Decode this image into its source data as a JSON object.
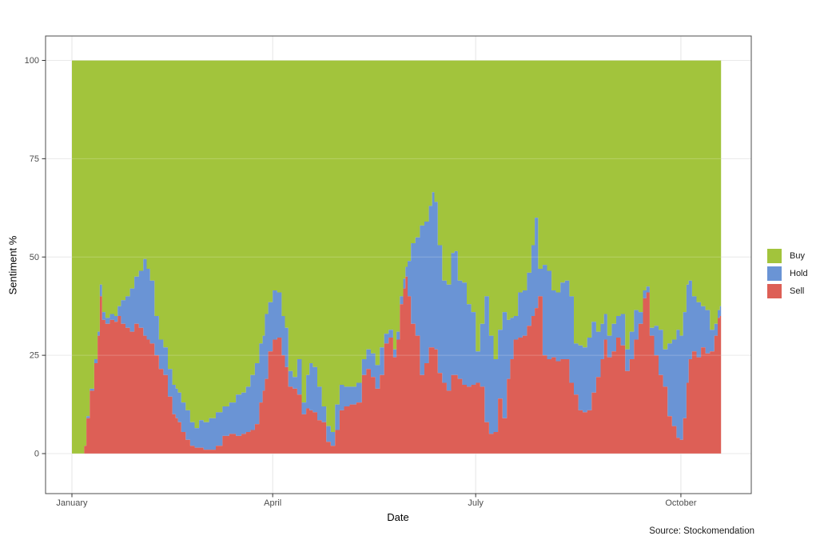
{
  "figure": {
    "y_axis": {
      "title": "Sentiment %",
      "tick_labels": [
        "0",
        "25",
        "50",
        "75",
        "100"
      ]
    },
    "x_axis": {
      "title": "Date",
      "tick_labels": [
        "January",
        "April",
        "July",
        "October"
      ]
    },
    "legend": {
      "items": [
        {
          "label": "Buy",
          "color": "#a2c43c"
        },
        {
          "label": "Hold",
          "color": "#6a94d5"
        },
        {
          "label": "Sell",
          "color": "#dd5f56"
        }
      ]
    },
    "source": "Source: Stockomendation"
  },
  "chart_data": {
    "type": "area",
    "stacked": true,
    "title": "",
    "xlabel": "Date",
    "ylabel": "Sentiment %",
    "ylim": [
      0,
      100
    ],
    "y_ticks": [
      0,
      25,
      50,
      75,
      100
    ],
    "x_unit": "days_since_january_1",
    "x_tick_positions": [
      0,
      90,
      181,
      273
    ],
    "x_tick_labels": [
      "January",
      "April",
      "July",
      "October"
    ],
    "legend_position": "right",
    "grid": "major",
    "colors": {
      "grid": "#e5e5e5",
      "panel_border": "#4d4d4d",
      "tick_text": "#4d4d4d",
      "panel_bg": "#ffffff"
    },
    "x": [
      0,
      5,
      6,
      7,
      9,
      11,
      12,
      13,
      14,
      16,
      18,
      20,
      21,
      23,
      25,
      27,
      29,
      31,
      33,
      34,
      36,
      38,
      40,
      42,
      44,
      46,
      47,
      48,
      50,
      52,
      54,
      56,
      58,
      60,
      63,
      66,
      69,
      72,
      75,
      77,
      79,
      81,
      83,
      85,
      86,
      87,
      89,
      91,
      93,
      95,
      96,
      98,
      100,
      102,
      104,
      106,
      107,
      109,
      111,
      113,
      115,
      117,
      119,
      121,
      123,
      126,
      129,
      131,
      133,
      135,
      137,
      139,
      141,
      143,
      145,
      146,
      148,
      149,
      150,
      151,
      153,
      155,
      157,
      159,
      161,
      162,
      163,
      165,
      167,
      169,
      171,
      172,
      174,
      176,
      178,
      180,
      182,
      184,
      186,
      188,
      190,
      192,
      194,
      196,
      197,
      199,
      201,
      203,
      205,
      207,
      208,
      210,
      212,
      214,
      216,
      218,
      220,
      222,
      224,
      226,
      228,
      230,
      232,
      234,
      236,
      238,
      239,
      241,
      243,
      245,
      247,
      249,
      251,
      253,
      255,
      257,
      258,
      260,
      262,
      264,
      266,
      268,
      270,
      272,
      273,
      275,
      276,
      277,
      279,
      281,
      283,
      285,
      287,
      289,
      290,
      291
    ],
    "series": [
      {
        "name": "Sell",
        "color": "#dd5f56",
        "values": [
          0,
          0,
          2,
          9,
          16,
          23,
          30,
          40,
          34,
          33,
          34,
          33.5,
          35,
          33,
          32,
          31,
          33,
          32,
          30,
          29,
          28,
          25,
          21.5,
          20,
          14.5,
          10,
          9,
          8,
          5.5,
          3.5,
          2,
          1.5,
          1.5,
          1,
          1,
          2,
          4.5,
          5,
          4.5,
          5,
          5.5,
          6,
          7.5,
          13,
          16,
          19,
          26,
          29,
          29.5,
          25,
          22,
          17,
          16.5,
          15,
          10,
          11.5,
          11,
          10.5,
          8.5,
          8,
          3,
          2,
          6,
          11,
          12,
          12.5,
          13,
          20,
          21.5,
          19.5,
          16.5,
          20,
          28,
          29.5,
          24.5,
          29,
          38,
          42,
          45,
          40,
          33,
          30,
          20,
          23,
          27,
          27,
          26.5,
          20.5,
          18,
          16,
          20,
          20,
          19,
          17.5,
          17,
          17.5,
          18,
          17,
          8,
          5,
          5.5,
          14,
          9,
          19,
          24,
          29,
          29.5,
          30,
          32.5,
          35,
          37,
          40,
          25,
          24,
          24.5,
          23.5,
          24,
          24,
          18,
          15,
          11,
          10.5,
          11,
          15.5,
          19.5,
          24,
          29,
          24.5,
          26,
          29.5,
          27.5,
          21,
          24,
          29,
          33,
          39.5,
          41,
          30,
          25,
          20,
          17,
          9.5,
          7,
          4,
          3.5,
          9,
          18,
          24,
          26,
          24.5,
          27,
          25.5,
          26,
          30,
          34.5,
          35
        ]
      },
      {
        "name": "Hold",
        "color": "#6a94d5",
        "values": [
          0,
          0,
          0,
          0.5,
          0.5,
          1,
          1,
          3,
          2,
          1.5,
          1.5,
          1.5,
          2.5,
          6,
          8,
          11,
          12,
          14.5,
          19.5,
          18,
          16,
          10,
          7.5,
          7,
          7,
          7.5,
          7.5,
          7.5,
          7.5,
          7.5,
          6,
          5,
          7,
          7,
          8,
          8.5,
          7.5,
          8,
          10.5,
          10.5,
          11.5,
          14,
          15.5,
          15,
          14,
          16.5,
          12.5,
          12.5,
          11.5,
          10,
          10,
          4,
          3,
          9,
          3,
          8.5,
          12,
          11.5,
          8.5,
          4,
          4,
          3.5,
          6.5,
          6.5,
          5,
          4.5,
          5,
          4,
          5,
          6,
          6,
          7,
          2.5,
          2,
          2,
          2,
          2,
          2.5,
          2.5,
          9,
          20.5,
          25,
          38,
          36,
          36,
          39.5,
          37.5,
          32.5,
          26,
          27,
          31,
          31.5,
          25,
          26,
          21,
          18.5,
          8,
          16,
          32,
          25,
          18.5,
          17.5,
          27,
          15,
          10.5,
          6,
          11.5,
          11.5,
          13.5,
          18,
          23,
          7,
          23,
          22.5,
          17,
          17.5,
          19.5,
          20,
          22,
          13,
          16.5,
          16.5,
          18.5,
          18,
          11.5,
          9,
          6.5,
          5.5,
          7,
          5.5,
          8,
          5.5,
          7,
          7.5,
          3,
          2,
          1.5,
          2,
          7.5,
          11.5,
          9.5,
          18.5,
          22,
          27.5,
          26.5,
          27,
          25,
          20,
          14,
          14,
          10.5,
          11,
          5.5,
          3,
          2,
          2.5
        ]
      },
      {
        "name": "Buy",
        "color": "#a2c43c",
        "values": [
          100,
          100,
          98,
          90.5,
          83.5,
          76,
          69,
          57,
          64,
          65.5,
          64.5,
          65,
          62.5,
          61,
          60,
          58,
          55,
          53.5,
          50.5,
          53,
          56,
          65,
          71,
          73,
          78.5,
          82.5,
          83.5,
          84.5,
          87,
          89,
          92,
          93.5,
          91.5,
          92,
          91,
          89.5,
          88,
          87,
          85,
          84.5,
          83,
          80,
          77,
          72,
          70,
          64.5,
          61.5,
          58.5,
          59,
          65,
          68,
          79,
          80.5,
          76,
          87,
          80,
          77,
          78,
          83,
          88,
          93,
          94.5,
          87.5,
          82.5,
          83,
          83,
          82,
          76,
          73.5,
          74.5,
          77.5,
          73,
          69.5,
          68.5,
          73.5,
          69,
          60,
          55.5,
          52.5,
          51,
          46.5,
          45,
          42,
          41,
          37,
          33.5,
          36,
          47,
          56,
          57,
          49,
          48.5,
          56,
          56.5,
          62,
          64,
          74,
          67,
          60,
          70,
          76,
          68.5,
          64,
          66,
          65.5,
          65,
          59,
          58.5,
          54,
          47,
          40,
          53,
          52,
          53.5,
          58.5,
          59,
          56.5,
          56,
          60,
          72,
          72.5,
          73,
          70.5,
          66.5,
          69,
          67,
          64.5,
          70,
          67,
          65,
          64.5,
          73.5,
          69,
          63.5,
          64,
          58.5,
          57.5,
          68,
          67.5,
          68.5,
          73.5,
          72,
          71,
          68.5,
          70,
          64,
          57,
          56,
          60,
          61.5,
          62.5,
          63.5,
          68.5,
          67,
          63.5,
          62.5
        ]
      }
    ]
  }
}
